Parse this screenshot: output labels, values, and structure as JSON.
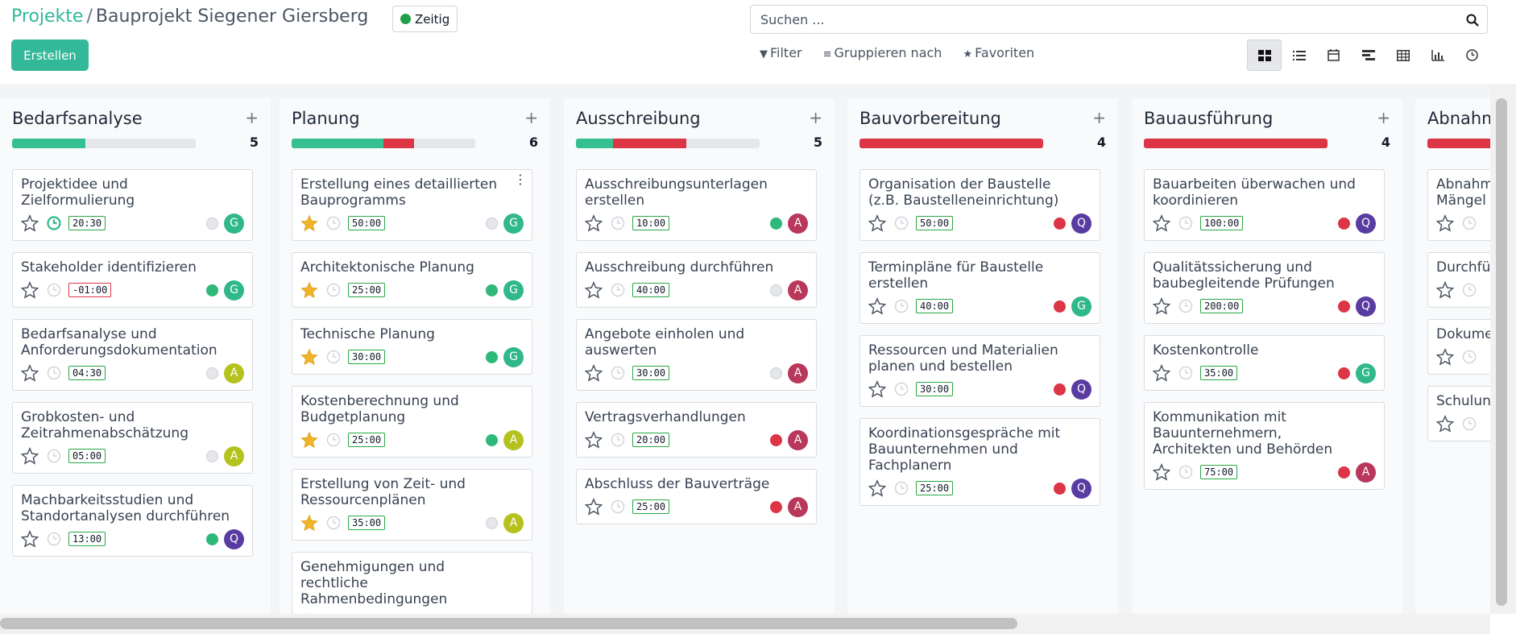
{
  "header": {
    "breadcrumb_parent": "Projekte",
    "breadcrumb_sep": "/",
    "breadcrumb_current": "Bauprojekt Siegener Giersberg",
    "status_label": "Zeitig",
    "create_label": "Erstellen",
    "search_placeholder": "Suchen ...",
    "filter_label": "Filter",
    "group_label": "Gruppieren nach",
    "favorites_label": "Favoriten",
    "views": [
      "kanban-icon",
      "list-icon",
      "calendar-icon",
      "gantt-icon",
      "table-icon",
      "graph-icon",
      "activity-icon"
    ],
    "active_view": "kanban-icon"
  },
  "columns": [
    {
      "title": "Bedarfsanalyse",
      "count": "5",
      "progress": {
        "green": 0.4,
        "red": 0.0
      },
      "cards": [
        {
          "title": "Projektidee und Zielformulierung",
          "starred": false,
          "clock": "green",
          "time": "20:30",
          "time_neg": false,
          "state": "grey",
          "avatar": "G",
          "avatar_style": "av-G"
        },
        {
          "title": "Stakeholder identifizieren",
          "starred": false,
          "clock": "grey",
          "time": "-01:00",
          "time_neg": true,
          "state": "green",
          "avatar": "G",
          "avatar_style": "av-G"
        },
        {
          "title": "Bedarfsanalyse und Anforderungsdokumentation",
          "starred": false,
          "clock": "grey",
          "time": "04:30",
          "time_neg": false,
          "state": "grey",
          "avatar": "A",
          "avatar_style": "av-A-olive"
        },
        {
          "title": "Grobkosten- und Zeitrahmenabschätzung",
          "starred": false,
          "clock": "grey",
          "time": "05:00",
          "time_neg": false,
          "state": "grey",
          "avatar": "A",
          "avatar_style": "av-A-olive"
        },
        {
          "title": "Machbarkeitsstudien und Standortanalysen durchführen",
          "starred": false,
          "clock": "grey",
          "time": "13:00",
          "time_neg": false,
          "state": "green",
          "avatar": "Q",
          "avatar_style": "av-Q"
        }
      ]
    },
    {
      "title": "Planung",
      "count": "6",
      "progress": {
        "green": 0.5,
        "red": 0.167
      },
      "cards": [
        {
          "title": "Erstellung eines detaillierten Bauprogramms",
          "starred": true,
          "clock": "grey",
          "time": "50:00",
          "time_neg": false,
          "state": "grey",
          "avatar": "G",
          "avatar_style": "av-G",
          "menu": true
        },
        {
          "title": "Architektonische Planung",
          "starred": true,
          "clock": "grey",
          "time": "25:00",
          "time_neg": false,
          "state": "green",
          "avatar": "G",
          "avatar_style": "av-G"
        },
        {
          "title": "Technische Planung",
          "starred": true,
          "clock": "grey",
          "time": "30:00",
          "time_neg": false,
          "state": "green",
          "avatar": "G",
          "avatar_style": "av-G"
        },
        {
          "title": "Kostenberechnung und Budgetplanung",
          "starred": true,
          "clock": "grey",
          "time": "25:00",
          "time_neg": false,
          "state": "green",
          "avatar": "A",
          "avatar_style": "av-A-olive"
        },
        {
          "title": "Erstellung von Zeit- und Ressourcenplänen",
          "starred": true,
          "clock": "grey",
          "time": "35:00",
          "time_neg": false,
          "state": "grey",
          "avatar": "A",
          "avatar_style": "av-A-olive"
        },
        {
          "title": "Genehmigungen und rechtliche Rahmenbedingungen",
          "starred": false,
          "clock": "grey",
          "time": "",
          "time_neg": false,
          "state": "",
          "avatar": "",
          "avatar_style": ""
        }
      ]
    },
    {
      "title": "Ausschreibung",
      "count": "5",
      "progress": {
        "green": 0.2,
        "red": 0.4
      },
      "cards": [
        {
          "title": "Ausschreibungsunterlagen erstellen",
          "starred": false,
          "clock": "grey",
          "time": "10:00",
          "time_neg": false,
          "state": "green",
          "avatar": "A",
          "avatar_style": "av-A-red"
        },
        {
          "title": "Ausschreibung durchführen",
          "starred": false,
          "clock": "grey",
          "time": "40:00",
          "time_neg": false,
          "state": "grey",
          "avatar": "A",
          "avatar_style": "av-A-red"
        },
        {
          "title": "Angebote einholen und auswerten",
          "starred": false,
          "clock": "grey",
          "time": "30:00",
          "time_neg": false,
          "state": "grey",
          "avatar": "A",
          "avatar_style": "av-A-red"
        },
        {
          "title": "Vertragsverhandlungen",
          "starred": false,
          "clock": "grey",
          "time": "20:00",
          "time_neg": false,
          "state": "red",
          "avatar": "A",
          "avatar_style": "av-A-red"
        },
        {
          "title": "Abschluss der Bauverträge",
          "starred": false,
          "clock": "grey",
          "time": "25:00",
          "time_neg": false,
          "state": "red",
          "avatar": "A",
          "avatar_style": "av-A-red"
        }
      ]
    },
    {
      "title": "Bauvorbereitung",
      "count": "4",
      "progress": {
        "green": 0.0,
        "red": 1.0
      },
      "cards": [
        {
          "title": "Organisation der Baustelle (z.B. Baustelleneinrichtung)",
          "starred": false,
          "clock": "grey",
          "time": "50:00",
          "time_neg": false,
          "state": "red",
          "avatar": "Q",
          "avatar_style": "av-Q"
        },
        {
          "title": "Terminpläne für Baustelle erstellen",
          "starred": false,
          "clock": "grey",
          "time": "40:00",
          "time_neg": false,
          "state": "red",
          "avatar": "G",
          "avatar_style": "av-G"
        },
        {
          "title": "Ressourcen und Materialien planen und bestellen",
          "starred": false,
          "clock": "grey",
          "time": "30:00",
          "time_neg": false,
          "state": "red",
          "avatar": "Q",
          "avatar_style": "av-Q"
        },
        {
          "title": "Koordinationsgespräche mit Bauunternehmen und Fachplanern",
          "starred": false,
          "clock": "grey",
          "time": "25:00",
          "time_neg": false,
          "state": "red",
          "avatar": "Q",
          "avatar_style": "av-Q"
        }
      ]
    },
    {
      "title": "Bauausführung",
      "count": "4",
      "progress": {
        "green": 0.0,
        "red": 1.0
      },
      "cards": [
        {
          "title": "Bauarbeiten überwachen und koordinieren",
          "starred": false,
          "clock": "grey",
          "time": "100:00",
          "time_neg": false,
          "state": "red",
          "avatar": "Q",
          "avatar_style": "av-Q"
        },
        {
          "title": "Qualitätssicherung und baubegleitende Prüfungen",
          "starred": false,
          "clock": "grey",
          "time": "200:00",
          "time_neg": false,
          "state": "red",
          "avatar": "Q",
          "avatar_style": "av-Q"
        },
        {
          "title": "Kostenkontrolle",
          "starred": false,
          "clock": "grey",
          "time": "35:00",
          "time_neg": false,
          "state": "red",
          "avatar": "G",
          "avatar_style": "av-G"
        },
        {
          "title": "Kommunikation mit Bauunternehmern, Architekten und Behörden",
          "starred": false,
          "clock": "grey",
          "time": "75:00",
          "time_neg": false,
          "state": "red",
          "avatar": "A",
          "avatar_style": "av-A-red"
        }
      ]
    },
    {
      "title": "Abnahme",
      "count": "",
      "progress": {
        "green": 0.0,
        "red": 1.0
      },
      "cards": [
        {
          "title": "Abnahme (inkl. Prüfung) Mängel",
          "starred": false,
          "clock": "grey",
          "time": "",
          "time_neg": false,
          "state": "",
          "avatar": "",
          "avatar_style": ""
        },
        {
          "title": "Durchführung und Beseitigung",
          "starred": false,
          "clock": "grey",
          "time": "",
          "time_neg": false,
          "state": "",
          "avatar": "",
          "avatar_style": ""
        },
        {
          "title": "Dokumentation von Bestand",
          "starred": false,
          "clock": "grey",
          "time": "",
          "time_neg": false,
          "state": "",
          "avatar": "",
          "avatar_style": ""
        },
        {
          "title": "Schulung technische",
          "starred": false,
          "clock": "grey",
          "time": "",
          "time_neg": false,
          "state": "",
          "avatar": "",
          "avatar_style": ""
        }
      ]
    }
  ]
}
